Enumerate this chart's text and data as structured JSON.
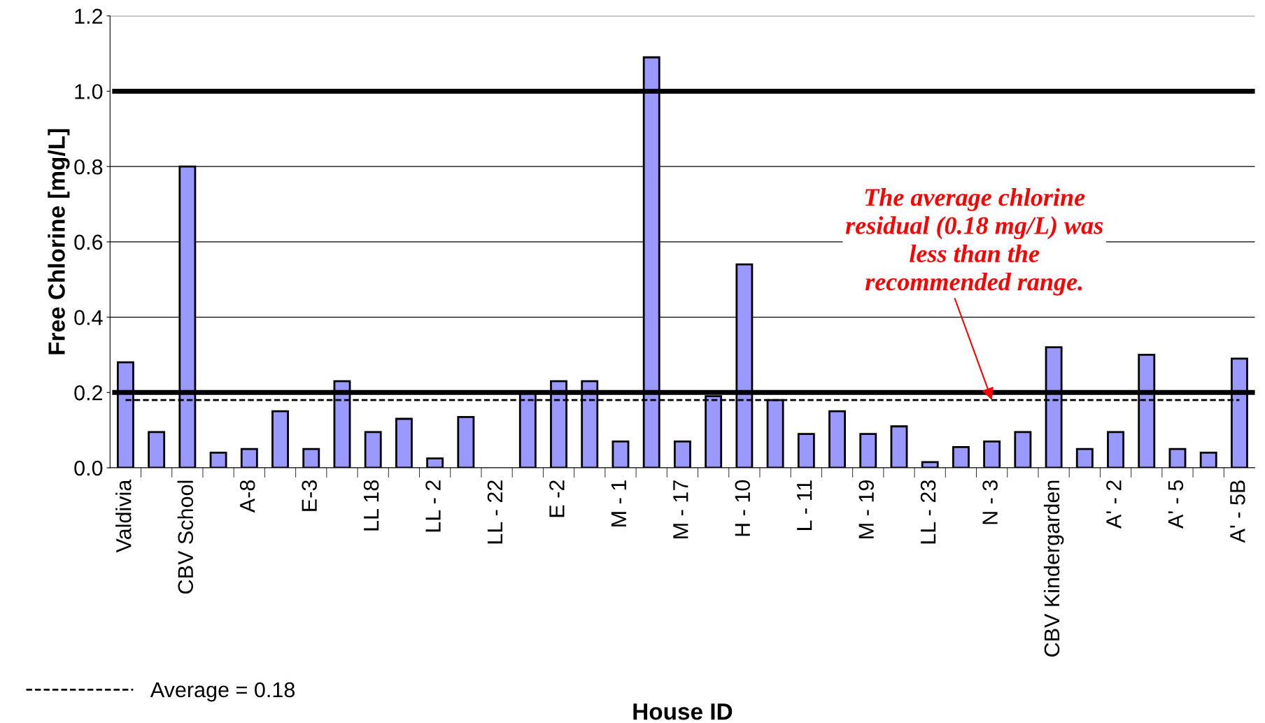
{
  "chart_data": {
    "type": "bar",
    "xlabel": "House ID",
    "ylabel": "Free Chlorine [mg/L]",
    "categories": [
      "Valdivia",
      null,
      "CBV School",
      null,
      "A-8",
      null,
      "E-3",
      null,
      "LL 18",
      null,
      "LL - 2",
      null,
      "LL - 22",
      null,
      "E -2",
      null,
      "M - 1",
      null,
      "M - 17",
      null,
      "H - 10",
      null,
      "L - 11",
      null,
      "M - 19",
      null,
      "LL - 23",
      null,
      "N - 3",
      null,
      "CBV Kindergarden",
      null,
      "A' - 2",
      null,
      "A' - 5",
      null,
      "A' - 5B"
    ],
    "series": [
      {
        "color": "#9999ff",
        "values": [
          0.28,
          0.095,
          0.8,
          0.04,
          0.05,
          0.15,
          0.05,
          0.23,
          0.095,
          0.13,
          0.025,
          0.135,
          0,
          0.2,
          0.23,
          0.23,
          0.07,
          1.09,
          0.07,
          0.19,
          0.54,
          0.18,
          0.09,
          0.15,
          0.09,
          0.11,
          0.015,
          0.055,
          0.07,
          0.095,
          0.32,
          0.05,
          0.095,
          0.3,
          0.05,
          0.04,
          0.29
        ]
      },
      {
        "type": "line",
        "name": "Average = 0.18",
        "color": "#000000",
        "line_style": "dashed",
        "values": [
          0.18,
          0.18,
          0.18,
          0.18,
          0.18,
          0.18,
          0.18,
          0.18,
          0.18,
          0.18,
          0.18,
          0.18,
          0.18,
          0.18,
          0.18,
          0.18,
          0.18,
          0.18,
          0.18,
          0.18,
          0.18,
          0.18,
          0.18,
          0.18,
          0.18,
          0.18,
          0.18,
          0.18,
          0.18,
          0.18,
          0.18,
          0.18,
          0.18,
          0.18,
          0.18,
          0.18,
          0.18
        ]
      }
    ],
    "ylim": [
      0,
      1.2
    ],
    "yticks": [
      {
        "value": 0,
        "label": "0.0"
      },
      0.2,
      0.4,
      0.6,
      0.8,
      {
        "value": 1,
        "label": "1.0"
      },
      1.2
    ],
    "grid": "y",
    "legend": "bottom left",
    "ref_lines": [
      {
        "axis": "y",
        "value": 1.0,
        "color": "#000000",
        "line_style": "solid"
      },
      {
        "axis": "y",
        "value": 0.2,
        "color": "#000000",
        "line_style": "solid"
      }
    ],
    "annotations": [
      {
        "text": "The average chlorine\nresidual (0.18 mg/L) was\nless than the\nrecommended range.",
        "x": "N - 3",
        "y": 0.18
      }
    ]
  }
}
